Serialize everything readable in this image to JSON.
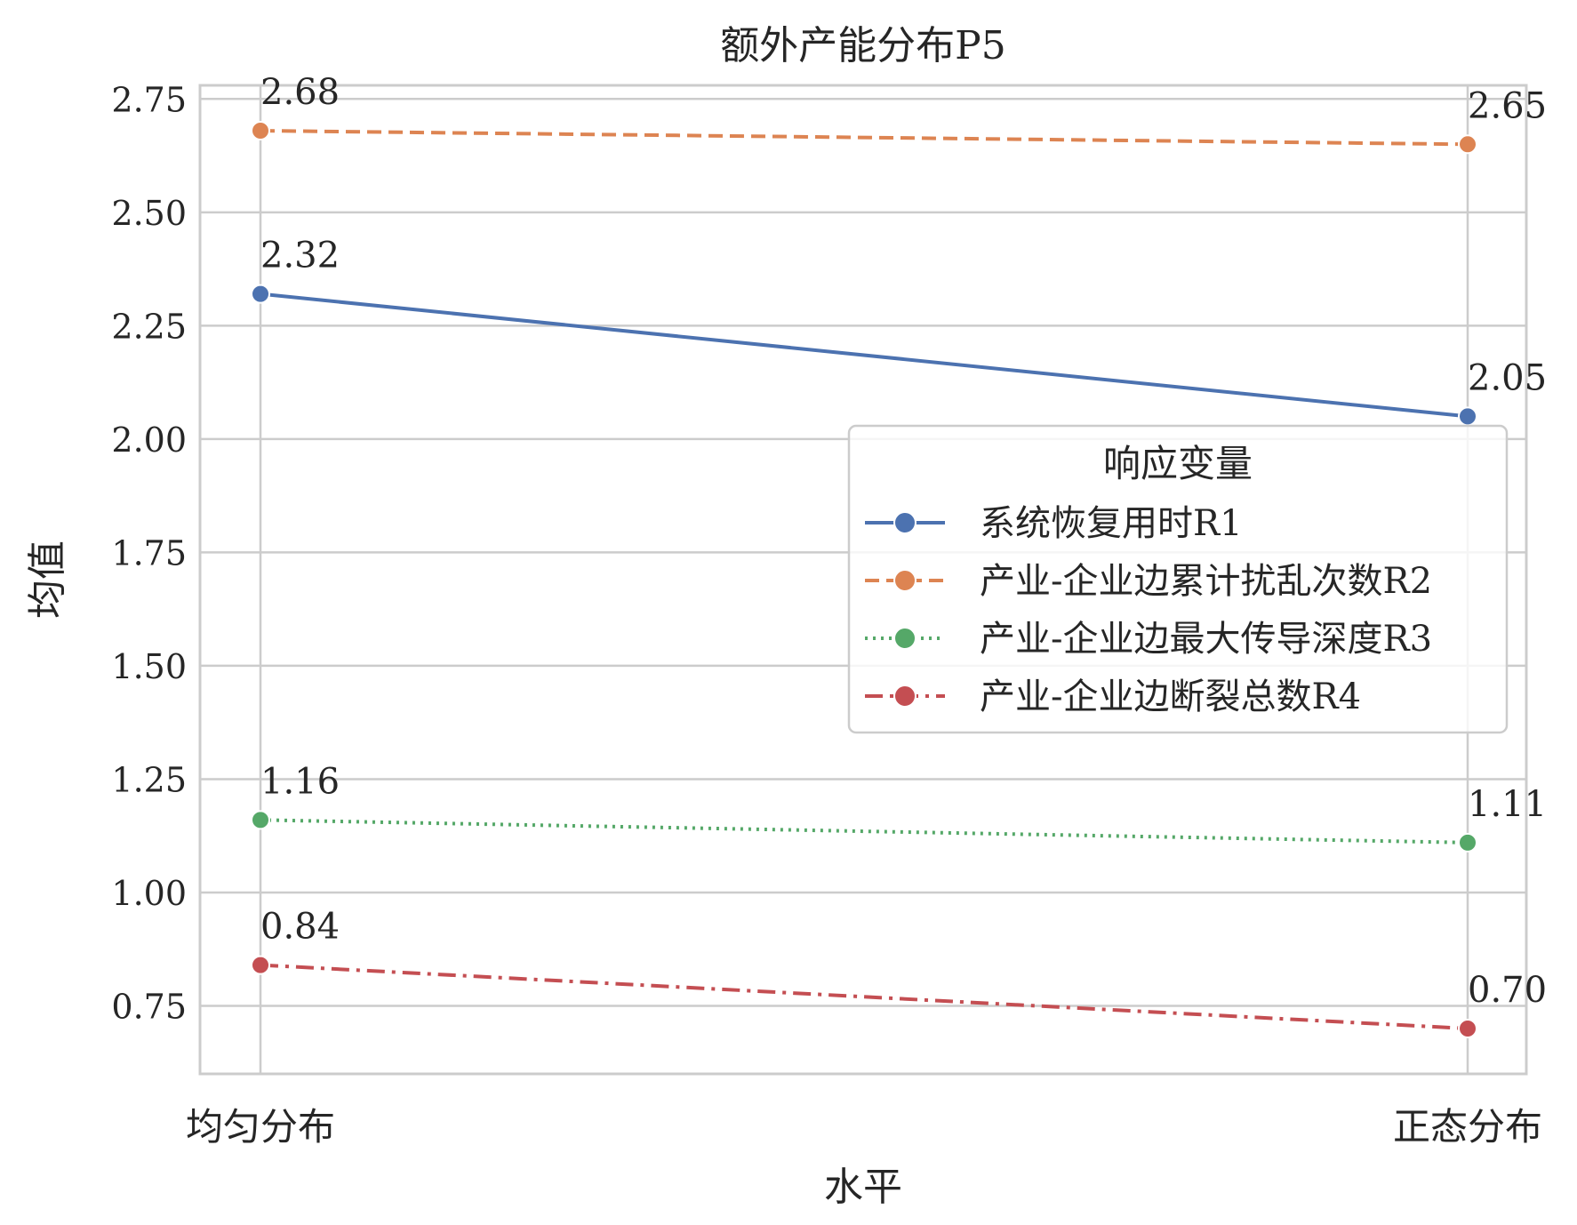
{
  "chart_data": {
    "type": "line",
    "title": "额外产能分布P5",
    "xlabel": "水平",
    "ylabel": "均值",
    "categories": [
      "均匀分布",
      "正态分布"
    ],
    "ylim": [
      0.6,
      2.78
    ],
    "yticks": [
      "0.75",
      "1.00",
      "1.25",
      "1.50",
      "1.75",
      "2.00",
      "2.25",
      "2.50",
      "2.75"
    ],
    "grid": true,
    "legend": {
      "title": "响应变量",
      "placement": "center-right"
    },
    "series": [
      {
        "name": "系统恢复用时R1",
        "values": [
          2.32,
          2.05
        ],
        "labels": [
          "2.32",
          "2.05"
        ],
        "color": "#4c72b0",
        "style": "solid"
      },
      {
        "name": "产业-企业边累计扰乱次数R2",
        "values": [
          2.68,
          2.65
        ],
        "labels": [
          "2.68",
          "2.65"
        ],
        "color": "#dd8452",
        "style": "dashed"
      },
      {
        "name": "产业-企业边最大传导深度R3",
        "values": [
          1.16,
          1.11
        ],
        "labels": [
          "1.16",
          "1.11"
        ],
        "color": "#55a868",
        "style": "dotted"
      },
      {
        "name": "产业-企业边断裂总数R4",
        "values": [
          0.84,
          0.7
        ],
        "labels": [
          "0.84",
          "0.70"
        ],
        "color": "#c44e52",
        "style": "dashdot"
      }
    ]
  }
}
